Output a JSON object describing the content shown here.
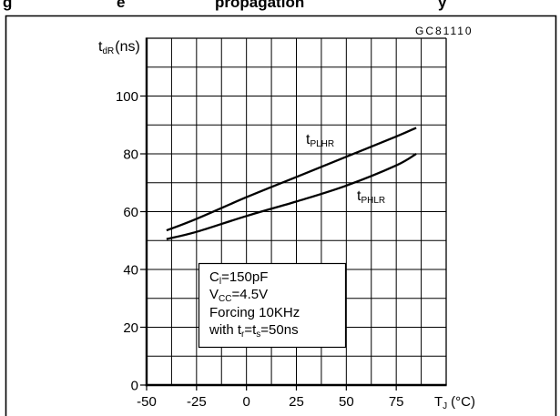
{
  "header": {
    "title_fragments": [
      "g",
      "e",
      "propagation",
      "y"
    ]
  },
  "colors": {
    "ink": "#000000",
    "paper": "#ffffff"
  },
  "chart_data": {
    "type": "line",
    "figure_code": "GC81110",
    "ylabel": {
      "main": "t",
      "sub": "dR",
      "unit": "(ns)"
    },
    "xlabel": {
      "main": "T",
      "sub": "J",
      "unit": "(°C)"
    },
    "xlim": [
      -50,
      100
    ],
    "ylim": [
      0,
      120
    ],
    "grid": true,
    "grid_step_x": 12.5,
    "grid_step_y": 10,
    "x_ticks": [
      {
        "value": -50,
        "label": "-50"
      },
      {
        "value": -25,
        "label": "-25"
      },
      {
        "value": 0,
        "label": "0"
      },
      {
        "value": 25,
        "label": "25"
      },
      {
        "value": 50,
        "label": "50"
      },
      {
        "value": 75,
        "label": "75"
      }
    ],
    "y_ticks": [
      {
        "value": 0,
        "label": "0"
      },
      {
        "value": 20,
        "label": "20"
      },
      {
        "value": 40,
        "label": "40"
      },
      {
        "value": 60,
        "label": "60"
      },
      {
        "value": 80,
        "label": "80"
      },
      {
        "value": 100,
        "label": "100"
      }
    ],
    "series": [
      {
        "label": {
          "main": "t",
          "sub": "PLHR"
        },
        "x": [
          -40,
          -25,
          0,
          25,
          50,
          75,
          85
        ],
        "y": [
          53.5,
          57.5,
          65,
          72,
          79,
          86,
          89
        ]
      },
      {
        "label": {
          "main": "t",
          "sub": "PHLR"
        },
        "x": [
          -40,
          -25,
          0,
          25,
          50,
          75,
          85
        ],
        "y": [
          50.5,
          53,
          58.5,
          63.5,
          69,
          76,
          80
        ]
      }
    ],
    "conditions": {
      "load": {
        "symbol": "C",
        "sub": "l",
        "value": "=150pF"
      },
      "supply": {
        "symbol": "V",
        "sub": "CC",
        "value": "=4.5V"
      },
      "forcing": "Forcing 10KHz",
      "edges": {
        "prefix": "with t",
        "sub1": "r",
        "mid": "=t",
        "sub2": "s",
        "value": "=50ns"
      }
    }
  }
}
